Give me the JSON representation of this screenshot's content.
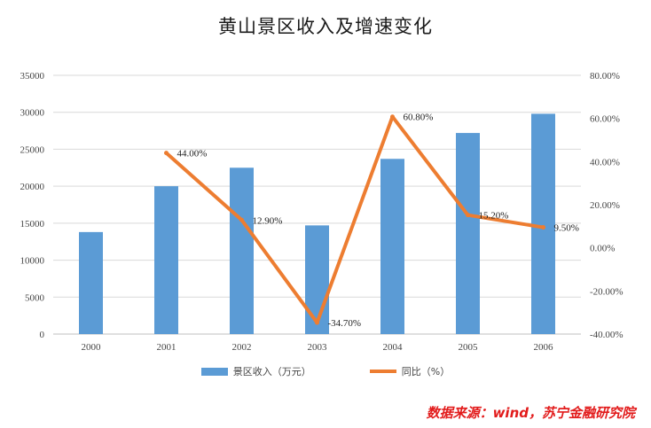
{
  "title": "黄山景区收入及增速变化",
  "source": "数据来源：wind，苏宁金融研究院",
  "colors": {
    "bar": "#5b9bd5",
    "line": "#ed7d31",
    "grid": "#d9d9d9",
    "source": "#e21b1b"
  },
  "chart_data": {
    "type": "bar",
    "categories": [
      "2000",
      "2001",
      "2002",
      "2003",
      "2004",
      "2005",
      "2006"
    ],
    "series": [
      {
        "name": "景区收入（万元）",
        "type": "bar",
        "axis": "left",
        "values": [
          13800,
          20000,
          22500,
          14700,
          23700,
          27200,
          29800
        ]
      },
      {
        "name": "同比（%）",
        "type": "line",
        "axis": "right",
        "values": [
          null,
          44.0,
          12.9,
          -34.7,
          60.8,
          15.2,
          9.5
        ],
        "labels": [
          "",
          "44.00%",
          "12.90%",
          "-34.70%",
          "60.80%",
          "15.20%",
          "9.50%"
        ]
      }
    ],
    "y_left": {
      "min": 0,
      "max": 35000,
      "ticks": [
        "0",
        "5000",
        "10000",
        "15000",
        "20000",
        "25000",
        "30000",
        "35000"
      ]
    },
    "y_right": {
      "min": -40,
      "max": 80,
      "ticks": [
        "-40.00%",
        "-20.00%",
        "0.00%",
        "20.00%",
        "40.00%",
        "60.00%",
        "80.00%"
      ]
    },
    "grid": true,
    "legend": "bottom"
  }
}
